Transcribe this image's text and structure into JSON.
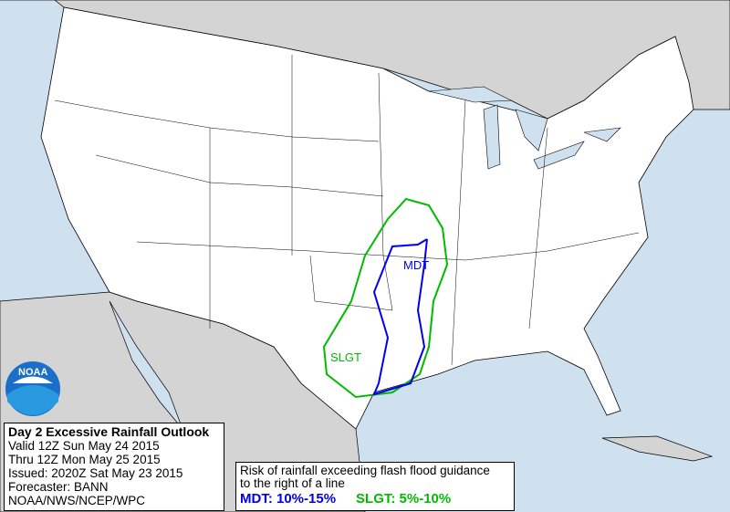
{
  "map": {
    "risk_labels": {
      "mdt": "MDT",
      "slgt": "SLGT"
    },
    "colors": {
      "ocean": "#cfe0ef",
      "land_foreign": "#d4d4d4",
      "land_us": "#ffffff",
      "mdt": "#0000ee",
      "slgt": "#00bb00"
    },
    "logo": "NOAA"
  },
  "info": {
    "title": "Day 2 Excessive Rainfall Outlook",
    "valid": "Valid 12Z Sun May 24 2015",
    "thru": "Thru 12Z Mon May 25 2015",
    "issued": "Issued: 2020Z Sat May 23 2015",
    "forecaster": "Forecaster: BANN",
    "agency": "NOAA/NWS/NCEP/WPC"
  },
  "legend": {
    "line1": "Risk of rainfall exceeding flash flood guidance",
    "line2": "to the right of a line",
    "mdt": "MDT: 10%-15%",
    "slgt": "SLGT: 5%-10%"
  }
}
